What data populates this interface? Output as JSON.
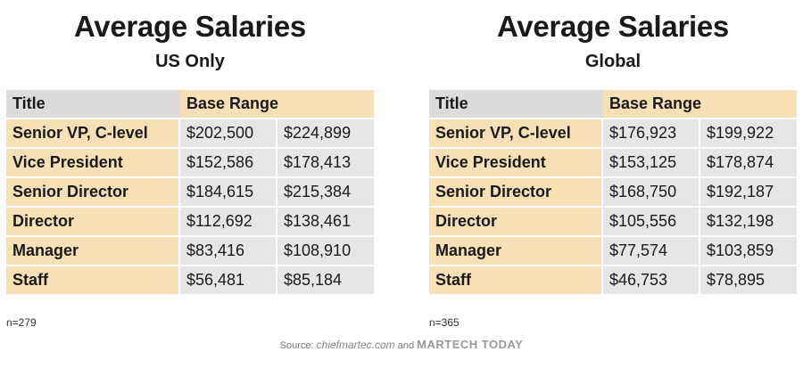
{
  "chart_data": [
    {
      "type": "table",
      "title": "Average Salaries",
      "subtitle": "US Only",
      "columns": [
        "Title",
        "Base Range"
      ],
      "rows": [
        {
          "title": "Senior VP, C-level",
          "low": "$202,500",
          "high": "$224,899"
        },
        {
          "title": "Vice President",
          "low": "$152,586",
          "high": "$178,413"
        },
        {
          "title": "Senior Director",
          "low": "$184,615",
          "high": "$215,384"
        },
        {
          "title": "Director",
          "low": "$112,692",
          "high": "$138,461"
        },
        {
          "title": "Manager",
          "low": "$83,416",
          "high": "$108,910"
        },
        {
          "title": "Staff",
          "low": "$56,481",
          "high": "$85,184"
        }
      ],
      "note": "n=279"
    },
    {
      "type": "table",
      "title": "Average Salaries",
      "subtitle": "Global",
      "columns": [
        "Title",
        "Base Range"
      ],
      "rows": [
        {
          "title": "Senior VP, C-level",
          "low": "$176,923",
          "high": "$199,922"
        },
        {
          "title": "Vice President",
          "low": "$153,125",
          "high": "$178,874"
        },
        {
          "title": "Senior Director",
          "low": "$168,750",
          "high": "$192,187"
        },
        {
          "title": "Director",
          "low": "$105,556",
          "high": "$132,198"
        },
        {
          "title": "Manager",
          "low": "$77,574",
          "high": "$103,859"
        },
        {
          "title": "Staff",
          "low": "$46,753",
          "high": "$78,895"
        }
      ],
      "note": "n=365"
    }
  ],
  "source": {
    "label": "Source:",
    "logo_1": "chiefmartec.com",
    "joiner": "and",
    "logo_2": "MARTECH TODAY"
  },
  "colors": {
    "header_title_bg": "#dcdcdc",
    "header_accent_bg": "#f7dfb6",
    "row_title_bg": "#f7dfb6",
    "value_bg": "#e6e6e6"
  }
}
